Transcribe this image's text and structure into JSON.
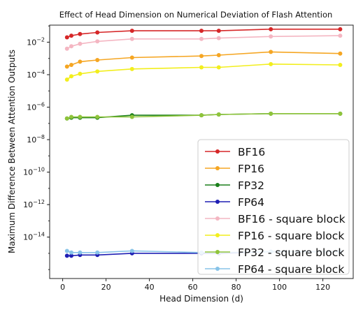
{
  "chart_data": {
    "type": "line",
    "title": "Effect of Head Dimension on Numerical Deviation of Flash Attention",
    "xlabel": "Head Dimension (d)",
    "ylabel": "Maximum Difference Between Attention Outputs",
    "y_scale": "log",
    "x_ticks": [
      0,
      20,
      40,
      60,
      80,
      100,
      120
    ],
    "y_ticks": [
      {
        "value": -2,
        "base": "10",
        "exp": "−2"
      },
      {
        "value": -4,
        "base": "10",
        "exp": "−4"
      },
      {
        "value": -6,
        "base": "10",
        "exp": "−6"
      },
      {
        "value": -8,
        "base": "10",
        "exp": "−8"
      },
      {
        "value": -10,
        "base": "10",
        "exp": "−10"
      },
      {
        "value": -12,
        "base": "10",
        "exp": "−12"
      },
      {
        "value": -14,
        "base": "10",
        "exp": "−14"
      }
    ],
    "xlim": [
      -6,
      134
    ],
    "ylim_log10": [
      -16.55,
      -0.95
    ],
    "legend_position": "lower-right",
    "series": [
      {
        "name": "BF16",
        "color": "#d62728",
        "x": [
          2,
          4,
          8,
          16,
          32,
          64,
          72,
          96,
          128
        ],
        "y_log10": [
          -1.7,
          -1.6,
          -1.5,
          -1.4,
          -1.3,
          -1.3,
          -1.3,
          -1.2,
          -1.2
        ]
      },
      {
        "name": "FP16",
        "color": "#f5a623",
        "x": [
          2,
          4,
          8,
          16,
          32,
          64,
          72,
          96,
          128
        ],
        "y_log10": [
          -3.5,
          -3.4,
          -3.2,
          -3.1,
          -2.95,
          -2.85,
          -2.8,
          -2.6,
          -2.7
        ]
      },
      {
        "name": "FP32",
        "color": "#1a7f1a",
        "x": [
          2,
          4,
          8,
          16,
          32,
          64,
          72,
          96,
          128
        ],
        "y_log10": [
          -6.7,
          -6.65,
          -6.65,
          -6.65,
          -6.5,
          -6.5,
          -6.45,
          -6.4,
          -6.4
        ]
      },
      {
        "name": "FP64",
        "color": "#1f1fb4",
        "x": [
          2,
          4,
          8,
          16,
          32,
          64,
          72,
          96,
          128
        ],
        "y_log10": [
          -15.15,
          -15.15,
          -15.1,
          -15.1,
          -15.0,
          -15.0,
          -15.0,
          -14.9,
          -14.9
        ]
      },
      {
        "name": "BF16 - square block",
        "color": "#f4b6c2",
        "x": [
          2,
          4,
          8,
          16,
          32,
          64,
          72,
          96,
          128
        ],
        "y_log10": [
          -2.4,
          -2.25,
          -2.1,
          -1.95,
          -1.8,
          -1.8,
          -1.75,
          -1.65,
          -1.6
        ]
      },
      {
        "name": "FP16 - square block",
        "color": "#f2ee1d",
        "x": [
          2,
          4,
          8,
          16,
          32,
          64,
          72,
          96,
          128
        ],
        "y_log10": [
          -4.3,
          -4.1,
          -3.95,
          -3.8,
          -3.65,
          -3.55,
          -3.55,
          -3.35,
          -3.4
        ]
      },
      {
        "name": "FP32 - square block",
        "color": "#8fc43a",
        "x": [
          2,
          4,
          8,
          16,
          32,
          64,
          72,
          96,
          128
        ],
        "y_log10": [
          -6.7,
          -6.6,
          -6.6,
          -6.6,
          -6.6,
          -6.5,
          -6.45,
          -6.4,
          -6.4
        ]
      },
      {
        "name": "FP64 - square block",
        "color": "#87c3e8",
        "x": [
          2,
          4,
          8,
          16,
          32,
          64,
          72,
          96,
          128
        ],
        "y_log10": [
          -14.85,
          -14.95,
          -14.95,
          -14.95,
          -14.85,
          -14.95,
          -14.95,
          -14.9,
          -14.9
        ]
      }
    ]
  }
}
